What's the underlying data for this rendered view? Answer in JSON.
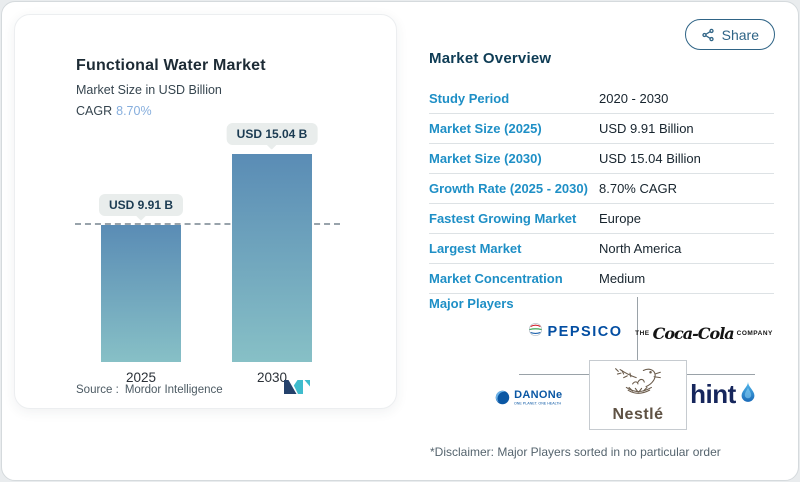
{
  "colors": {
    "label_blue": "#1e8fc6",
    "heading_navy": "#0e3c55",
    "cagr_blue": "#86aedd",
    "share_blue": "#2f6486",
    "bar_top": "#5a8cb5",
    "bar_bottom": "#87c0c6"
  },
  "share": {
    "label": "Share"
  },
  "chart_card": {
    "title": "Functional Water Market",
    "subtitle": "Market Size in USD Billion",
    "cagr_label": "CAGR",
    "cagr_value": "8.70%",
    "source_label": "Source :",
    "source_value": "Mordor Intelligence"
  },
  "chart_data": {
    "type": "bar",
    "categories": [
      "2025",
      "2030"
    ],
    "values": [
      9.91,
      15.04
    ],
    "value_labels": [
      "USD 9.91 B",
      "USD 15.04 B"
    ],
    "title": "Functional Water Market",
    "ylabel": "Market Size in USD Billion",
    "ylim": [
      0,
      15.04
    ],
    "grid": false,
    "dashed_reference_line_at": 9.91,
    "bar_gradient": [
      "#5a8cb5",
      "#87c0c6"
    ]
  },
  "overview": {
    "title": "Market Overview",
    "rows": [
      {
        "label": "Study Period",
        "value": "2020 - 2030"
      },
      {
        "label": "Market Size (2025)",
        "value": "USD 9.91 Billion"
      },
      {
        "label": "Market Size (2030)",
        "value": "USD 15.04 Billion"
      },
      {
        "label": "Growth Rate (2025 - 2030)",
        "value": "8.70% CAGR"
      },
      {
        "label": "Fastest Growing Market",
        "value": "Europe"
      },
      {
        "label": "Largest Market",
        "value": "North America"
      },
      {
        "label": "Market Concentration",
        "value": "Medium"
      }
    ],
    "major_players_label": "Major Players",
    "disclaimer": "*Disclaimer: Major Players sorted in no particular order"
  },
  "players": {
    "pepsico": {
      "name": "PEPSICO"
    },
    "cocacola": {
      "pre": "THE",
      "name": "Coca-Cola",
      "post": "COMPANY"
    },
    "nestle": {
      "name": "Nestlé"
    },
    "danone": {
      "name": "DANONe",
      "tagline": "ONE PLANET. ONE HEALTH"
    },
    "hint": {
      "name": "hint"
    }
  }
}
